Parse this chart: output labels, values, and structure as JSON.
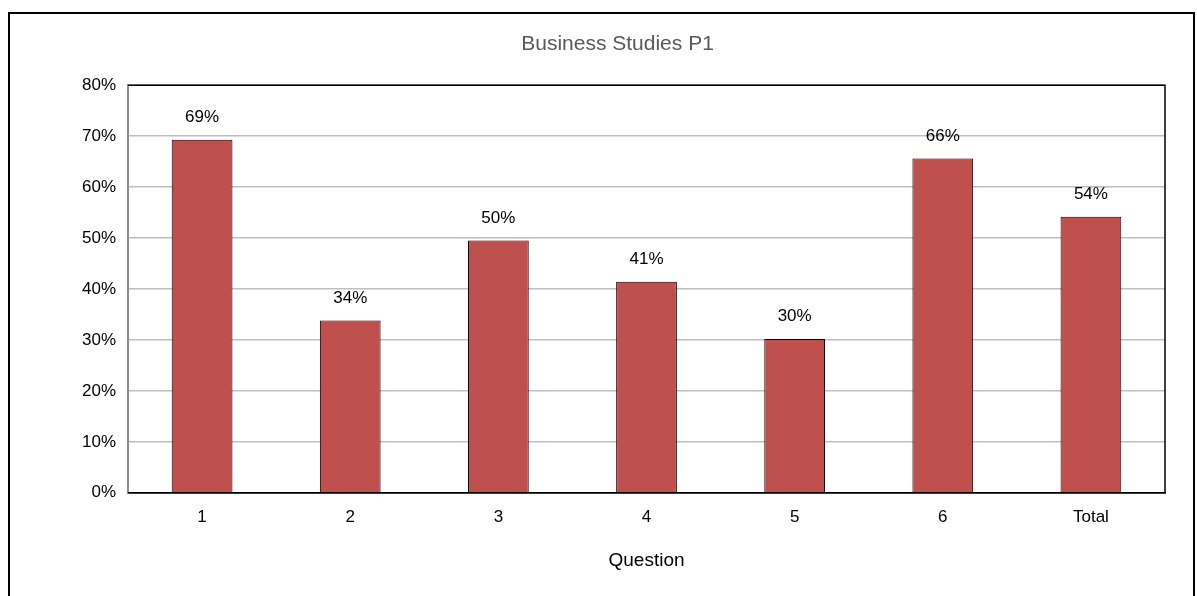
{
  "chart_data": {
    "type": "bar",
    "title": "Business Studies P1",
    "xlabel": "Question",
    "categories": [
      "1",
      "2",
      "3",
      "4",
      "5",
      "6",
      "Total"
    ],
    "values": [
      69.3,
      33.8,
      49.5,
      41.4,
      30.2,
      65.6,
      54.2
    ],
    "value_labels": [
      "69%",
      "34%",
      "50%",
      "41%",
      "30%",
      "66%",
      "54%"
    ],
    "color": "#c0504d",
    "ylim": [
      0,
      80
    ],
    "yticks": [
      {
        "value": 0,
        "label": "0%"
      },
      {
        "value": 10,
        "label": "10%"
      },
      {
        "value": 20,
        "label": "20%"
      },
      {
        "value": 30,
        "label": "30%"
      },
      {
        "value": 40,
        "label": "40%"
      },
      {
        "value": 50,
        "label": "50%"
      },
      {
        "value": 60,
        "label": "60%"
      },
      {
        "value": 70,
        "label": "70%"
      },
      {
        "value": 80,
        "label": "80%"
      }
    ],
    "grid": "y",
    "legend": false
  }
}
